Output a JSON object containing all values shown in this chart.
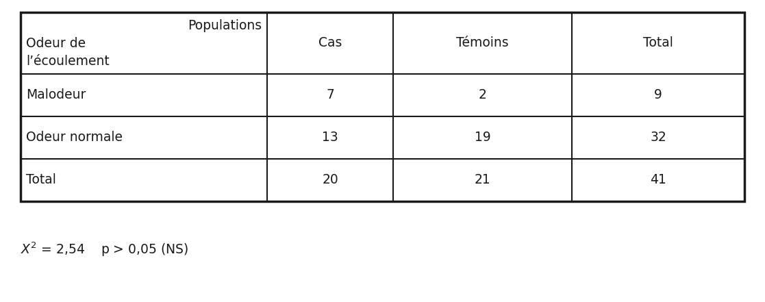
{
  "header_populations": "Populations",
  "header_odeur_line1": "Odeur de",
  "header_odeur_line2": "l’écoulement",
  "header_col1": "Cas",
  "header_col2": "Témoins",
  "header_col3": "Total",
  "rows": [
    [
      "Malodeur",
      "7",
      "2",
      "9"
    ],
    [
      "Odeur normale",
      "13",
      "19",
      "32"
    ],
    [
      "Total",
      "20",
      "21",
      "41"
    ]
  ],
  "footnote_math": "$X^2$",
  "footnote_text": " = 2,54    p > 0,05 (NS)",
  "bg_color": "#ffffff",
  "text_color": "#1a1a1a",
  "border_color": "#1a1a1a",
  "font_size": 13.5,
  "header_font_size": 13.5
}
